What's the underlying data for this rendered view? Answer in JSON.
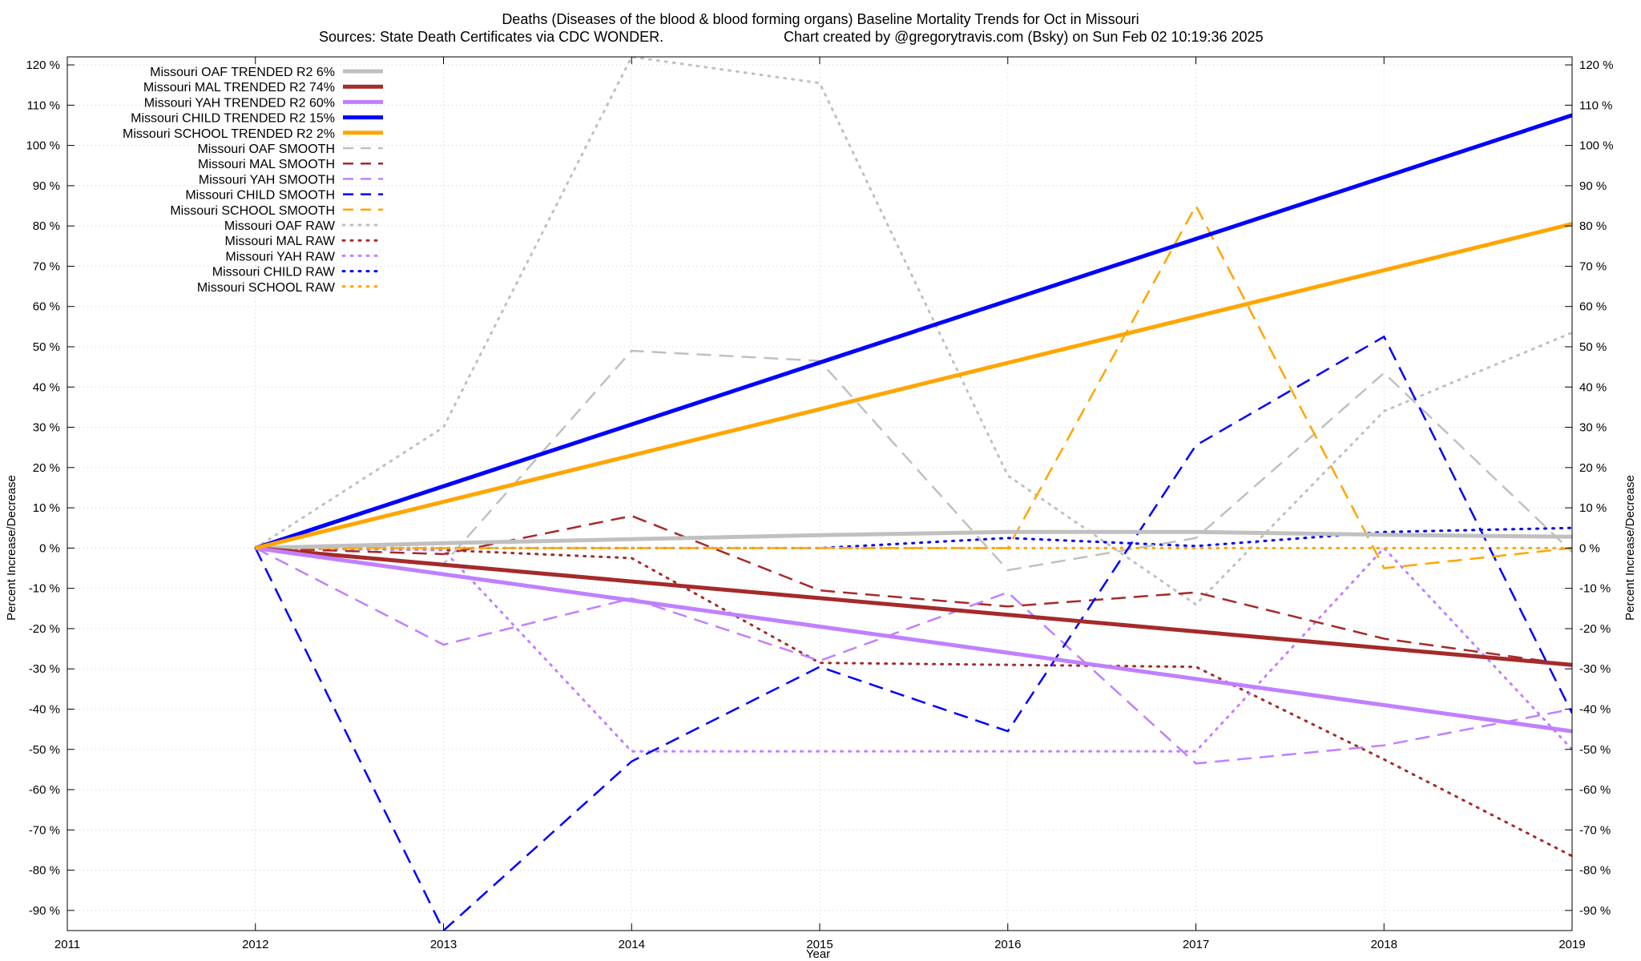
{
  "chart_data": {
    "type": "line",
    "title": "Deaths (Diseases of the blood & blood forming organs)  Baseline Mortality Trends for Oct in Missouri",
    "subtitle_left": "Sources: State Death Certificates via CDC WONDER.",
    "subtitle_right": "Chart created by @gregorytravis.com (Bsky) on Sun Feb 02 10:19:36 2025",
    "xlabel": "Year",
    "ylabel_left": "Percent Increase/Decrease",
    "ylabel_right": "Percent Increase/Decrease",
    "xlim": [
      2011,
      2019
    ],
    "ylim": [
      -95,
      122
    ],
    "x_ticks": [
      2011,
      2012,
      2013,
      2014,
      2015,
      2016,
      2017,
      2018,
      2019
    ],
    "x_tick_labels": [
      "2011",
      "2012",
      "2013",
      "2014",
      "2015",
      "2016",
      "2017",
      "2018",
      "2019"
    ],
    "y_ticks": [
      120,
      110,
      100,
      90,
      80,
      70,
      60,
      50,
      40,
      30,
      20,
      10,
      0,
      -10,
      -20,
      -30,
      -40,
      -50,
      -60,
      -70,
      -80,
      -90
    ],
    "y_tick_labels": [
      "120 %",
      "110 %",
      "100 %",
      "90 %",
      "80 %",
      "70 %",
      "60 %",
      "50 %",
      "40 %",
      "30 %",
      "20 %",
      "10 %",
      "0 %",
      "-10 %",
      "-20 %",
      "-30 %",
      "-40 %",
      "-50 %",
      "-60 %",
      "-70 %",
      "-80 %",
      "-90 %"
    ],
    "grid": true,
    "legend_position": "top-left",
    "series": [
      {
        "name": "Missouri OAF TRENDED R2  6%",
        "color": "#c0c0c0",
        "style": "solid",
        "x": [
          2012,
          2013,
          2014,
          2015,
          2016,
          2017,
          2018,
          2019
        ],
        "values": [
          0,
          1.2,
          2.2,
          3.2,
          4.0,
          4.0,
          3.3,
          2.8
        ]
      },
      {
        "name": "Missouri MAL TRENDED R2  74%",
        "color": "#a52a2a",
        "style": "solid",
        "x": [
          2012,
          2019
        ],
        "values": [
          0,
          -29
        ]
      },
      {
        "name": "Missouri YAH TRENDED R2  60%",
        "color": "#c080ff",
        "style": "solid",
        "x": [
          2012,
          2019
        ],
        "values": [
          0,
          -45.5
        ]
      },
      {
        "name": "Missouri CHILD TRENDED R2  15%",
        "color": "#0000ff",
        "style": "solid",
        "x": [
          2012,
          2019
        ],
        "values": [
          0,
          107.5
        ]
      },
      {
        "name": "Missouri SCHOOL TRENDED R2  2%",
        "color": "#ffa500",
        "style": "solid",
        "x": [
          2012,
          2019
        ],
        "values": [
          0,
          80.5
        ]
      },
      {
        "name": "Missouri OAF SMOOTH",
        "color": "#c0c0c0",
        "style": "dashed",
        "x": [
          2012,
          2013,
          2014,
          2015,
          2016,
          2017,
          2018,
          2019
        ],
        "values": [
          0,
          -4,
          49,
          46.5,
          -5.5,
          2.5,
          43.5,
          -1
        ]
      },
      {
        "name": "Missouri MAL SMOOTH",
        "color": "#a52a2a",
        "style": "dashed",
        "x": [
          2012,
          2013,
          2014,
          2015,
          2016,
          2017,
          2018,
          2019
        ],
        "values": [
          0,
          -1.5,
          8,
          -10.5,
          -14.5,
          -11,
          -22.5,
          -29
        ]
      },
      {
        "name": "Missouri YAH SMOOTH",
        "color": "#c080ff",
        "style": "dashed",
        "x": [
          2012,
          2013,
          2014,
          2015,
          2016,
          2017,
          2018,
          2019
        ],
        "values": [
          0,
          -24,
          -12.5,
          -28,
          -11,
          -53.5,
          -49,
          -40
        ]
      },
      {
        "name": "Missouri CHILD SMOOTH",
        "color": "#0000ff",
        "style": "dashed",
        "x": [
          2012,
          2013,
          2014,
          2015,
          2016,
          2017,
          2018,
          2019
        ],
        "values": [
          0,
          -95,
          -53,
          -29.5,
          -45.5,
          25.5,
          52.5,
          -41
        ]
      },
      {
        "name": "Missouri SCHOOL SMOOTH",
        "color": "#ffa500",
        "style": "dashed",
        "x": [
          2012,
          2013,
          2014,
          2015,
          2016,
          2017,
          2018,
          2019
        ],
        "values": [
          0,
          0,
          0,
          0,
          0,
          85,
          -5,
          0
        ]
      },
      {
        "name": "Missouri OAF RAW",
        "color": "#c0c0c0",
        "style": "dotted",
        "x": [
          2012,
          2013,
          2014,
          2015,
          2016,
          2017,
          2018,
          2019
        ],
        "values": [
          0,
          30,
          122,
          115.5,
          18,
          -14,
          34,
          53.5
        ]
      },
      {
        "name": "Missouri MAL RAW",
        "color": "#a52a2a",
        "style": "dotted",
        "x": [
          2012,
          2013,
          2014,
          2015,
          2016,
          2017,
          2018,
          2019
        ],
        "values": [
          0,
          -0.5,
          -2.5,
          -28.5,
          -29,
          -29.5,
          -52.5,
          -76.5
        ]
      },
      {
        "name": "Missouri YAH RAW",
        "color": "#c080ff",
        "style": "dotted",
        "x": [
          2012,
          2013,
          2014,
          2015,
          2016,
          2017,
          2018,
          2019
        ],
        "values": [
          0,
          -0.5,
          -50.5,
          -50.5,
          -50.5,
          -50.5,
          0,
          -50
        ]
      },
      {
        "name": "Missouri CHILD RAW",
        "color": "#0000ff",
        "style": "dotted",
        "x": [
          2012,
          2013,
          2014,
          2015,
          2016,
          2017,
          2018,
          2019
        ],
        "values": [
          0,
          0,
          0,
          0,
          2.5,
          0.5,
          4,
          5
        ]
      },
      {
        "name": "Missouri SCHOOL RAW",
        "color": "#ffa500",
        "style": "dotted",
        "x": [
          2012,
          2013,
          2014,
          2015,
          2016,
          2017,
          2018,
          2019
        ],
        "values": [
          0,
          0,
          0,
          0,
          0,
          0,
          0,
          0
        ]
      }
    ]
  }
}
